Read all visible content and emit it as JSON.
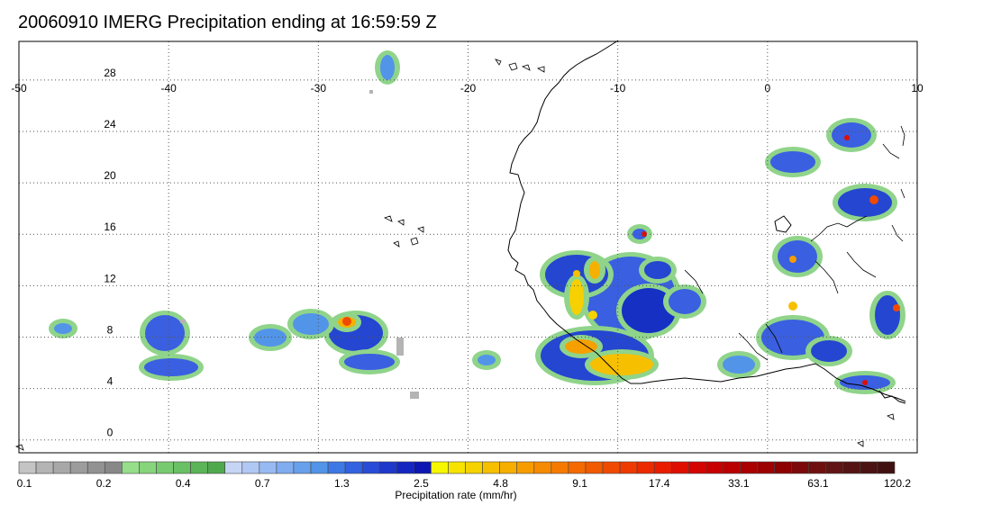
{
  "title": "20060910 IMERG Precipitation ending at 16:59:59 Z",
  "map": {
    "lon_range": [
      -50,
      10
    ],
    "lat_range": [
      -1,
      31
    ],
    "lon_ticks": [
      -50,
      -40,
      -30,
      -20,
      -10,
      0,
      10
    ],
    "lon_tick_labels": [
      "-50",
      "-40",
      "-30",
      "-20",
      "-10",
      "0",
      "10"
    ],
    "lat_ticks": [
      0,
      4,
      8,
      12,
      16,
      20,
      24,
      28
    ],
    "lat_tick_labels": [
      "0",
      "4",
      "8",
      "12",
      "16",
      "20",
      "24",
      "28"
    ],
    "gridlines": "dotted",
    "features": [
      "coastline",
      "precipitation-field"
    ]
  },
  "colorbar": {
    "title": "Precipitation rate (mm/hr)",
    "tick_labels": [
      "0.1",
      "0.2",
      "0.4",
      "0.7",
      "1.3",
      "2.5",
      "4.8",
      "9.1",
      "17.4",
      "33.1",
      "63.1",
      "120.2"
    ],
    "colors": [
      "#c4c4c4",
      "#b4b4b4",
      "#a8a8a8",
      "#9c9c9c",
      "#929292",
      "#888888",
      "#96de8a",
      "#86d47c",
      "#78ca70",
      "#6ac064",
      "#5cb458",
      "#50a84e",
      "#c6d4f6",
      "#b0c8f4",
      "#98baf2",
      "#80acf0",
      "#68a0ec",
      "#5294e8",
      "#3e78e4",
      "#3262e0",
      "#284cd8",
      "#1e38cc",
      "#1426c0",
      "#0c16b2",
      "#f6f600",
      "#f6e400",
      "#f6d200",
      "#f6c000",
      "#f6ae00",
      "#f69c00",
      "#f68a00",
      "#f67a00",
      "#f46a00",
      "#f25a00",
      "#f04a00",
      "#ee3a00",
      "#ec2a00",
      "#ea1c00",
      "#e00e00",
      "#d40400",
      "#c80000",
      "#ba0000",
      "#aa0000",
      "#9c0000",
      "#8c0000",
      "#7c0a0a",
      "#6e1010",
      "#601414",
      "#541414",
      "#4a1212",
      "#401010"
    ]
  }
}
